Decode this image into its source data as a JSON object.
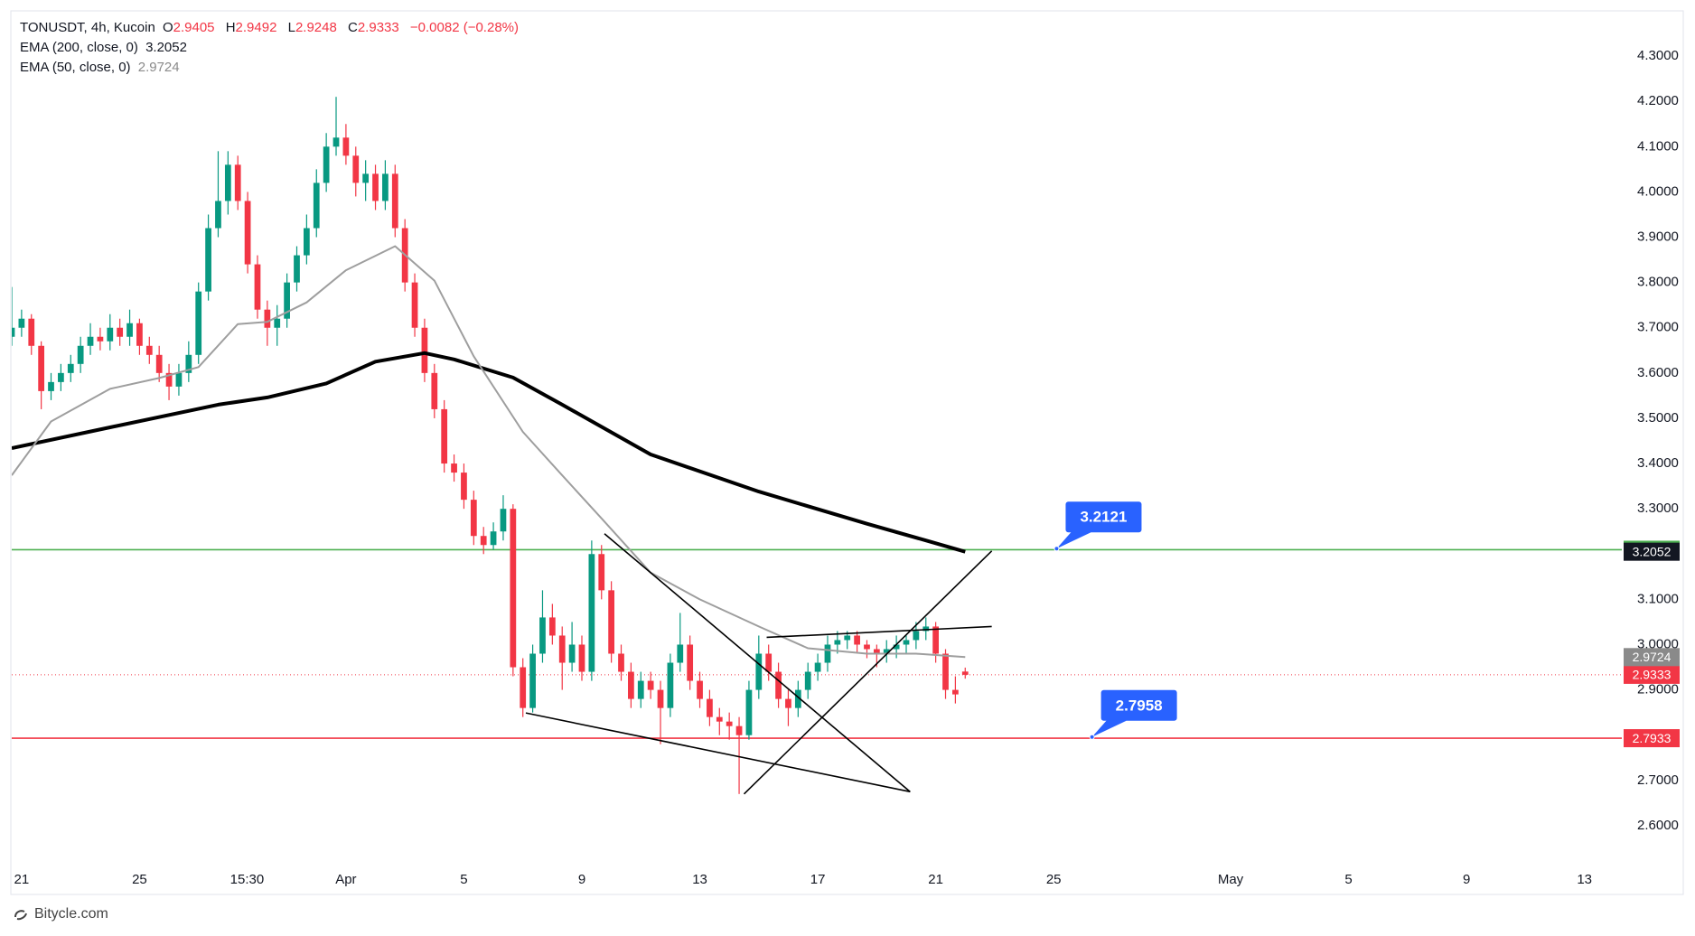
{
  "chart_data": {
    "type": "candlestick",
    "symbol": "TONUSDT, 4h, Kucoin",
    "ohlc_letters": [
      "O",
      "H",
      "L",
      "C"
    ],
    "change": "−0.0082 (−0.28%)",
    "up_color": "#089981",
    "down_color": "#f23645",
    "grid": false,
    "xlim": [
      -1,
      162.8
    ],
    "ylim": [
      2.514,
      4.398
    ],
    "xticks": [
      {
        "value": 0,
        "label": "21"
      },
      {
        "value": 12,
        "label": "25"
      },
      {
        "value": 22.94,
        "label": "15:30"
      },
      {
        "value": 33,
        "label": "Apr"
      },
      {
        "value": 45,
        "label": "5"
      },
      {
        "value": 57,
        "label": "9"
      },
      {
        "value": 69,
        "label": "13"
      },
      {
        "value": 81,
        "label": "17"
      },
      {
        "value": 93,
        "label": "21"
      },
      {
        "value": 105,
        "label": "25"
      },
      {
        "value": 123,
        "label": "May"
      },
      {
        "value": 135,
        "label": "5"
      },
      {
        "value": 147,
        "label": "9"
      },
      {
        "value": 159,
        "label": "13"
      }
    ],
    "yticks": [
      {
        "value": 2.6,
        "label": "2.6000"
      },
      {
        "value": 2.7,
        "label": "2.7000"
      },
      {
        "value": 2.8,
        "label": "2.8000"
      },
      {
        "value": 2.9,
        "label": "2.9000"
      },
      {
        "value": 3.0,
        "label": "3.0000"
      },
      {
        "value": 3.1,
        "label": "3.1000"
      },
      {
        "value": 3.2,
        "label": "3.2000"
      },
      {
        "value": 3.3,
        "label": "3.3000"
      },
      {
        "value": 3.4,
        "label": "3.4000"
      },
      {
        "value": 3.5,
        "label": "3.5000"
      },
      {
        "value": 3.6,
        "label": "3.6000"
      },
      {
        "value": 3.7,
        "label": "3.7000"
      },
      {
        "value": 3.8,
        "label": "3.8000"
      },
      {
        "value": 3.9,
        "label": "3.9000"
      },
      {
        "value": 4.0,
        "label": "4.0000"
      },
      {
        "value": 4.1,
        "label": "4.1000"
      },
      {
        "value": 4.2,
        "label": "4.2000"
      },
      {
        "value": 4.3,
        "label": "4.3000"
      }
    ],
    "x": [
      -1,
      0,
      1,
      2,
      3,
      4,
      5,
      6,
      7,
      8,
      9,
      10,
      11,
      12,
      13,
      14,
      15,
      16,
      17,
      18,
      19,
      20,
      21,
      22,
      23,
      24,
      25,
      26,
      27,
      28,
      29,
      30,
      31,
      32,
      33,
      34,
      35,
      36,
      37,
      38,
      39,
      40,
      41,
      42,
      43,
      44,
      45,
      46,
      47,
      48,
      49,
      50,
      51,
      52,
      53,
      54,
      55,
      56,
      57,
      58,
      59,
      60,
      61,
      62,
      63,
      64,
      65,
      66,
      67,
      68,
      69,
      70,
      71,
      72,
      73,
      74,
      75,
      76,
      77,
      78,
      79,
      80,
      81,
      82,
      83,
      84,
      85,
      86,
      87,
      88,
      89,
      90,
      91,
      92,
      93,
      94,
      95,
      96
    ],
    "candles": [
      [
        3.68,
        3.79,
        3.66,
        3.7
      ],
      [
        3.7,
        3.74,
        3.68,
        3.72
      ],
      [
        3.72,
        3.73,
        3.64,
        3.66
      ],
      [
        3.66,
        3.67,
        3.52,
        3.56
      ],
      [
        3.56,
        3.6,
        3.54,
        3.58
      ],
      [
        3.58,
        3.62,
        3.56,
        3.6
      ],
      [
        3.6,
        3.64,
        3.58,
        3.62
      ],
      [
        3.62,
        3.68,
        3.6,
        3.66
      ],
      [
        3.66,
        3.71,
        3.64,
        3.68
      ],
      [
        3.68,
        3.7,
        3.65,
        3.67
      ],
      [
        3.67,
        3.73,
        3.65,
        3.7
      ],
      [
        3.7,
        3.72,
        3.66,
        3.68
      ],
      [
        3.68,
        3.74,
        3.66,
        3.71
      ],
      [
        3.71,
        3.72,
        3.64,
        3.66
      ],
      [
        3.66,
        3.68,
        3.62,
        3.64
      ],
      [
        3.64,
        3.66,
        3.58,
        3.6
      ],
      [
        3.6,
        3.62,
        3.54,
        3.57
      ],
      [
        3.57,
        3.62,
        3.55,
        3.6
      ],
      [
        3.6,
        3.67,
        3.58,
        3.64
      ],
      [
        3.64,
        3.8,
        3.62,
        3.78
      ],
      [
        3.78,
        3.95,
        3.76,
        3.92
      ],
      [
        3.92,
        4.09,
        3.9,
        3.98
      ],
      [
        3.98,
        4.09,
        3.95,
        4.06
      ],
      [
        4.06,
        4.08,
        3.96,
        3.98
      ],
      [
        3.98,
        4.0,
        3.82,
        3.84
      ],
      [
        3.84,
        3.86,
        3.72,
        3.74
      ],
      [
        3.74,
        3.76,
        3.66,
        3.7
      ],
      [
        3.7,
        3.75,
        3.66,
        3.72
      ],
      [
        3.72,
        3.82,
        3.7,
        3.8
      ],
      [
        3.8,
        3.88,
        3.78,
        3.86
      ],
      [
        3.86,
        3.95,
        3.84,
        3.92
      ],
      [
        3.92,
        4.05,
        3.9,
        4.02
      ],
      [
        4.02,
        4.13,
        4.0,
        4.1
      ],
      [
        4.1,
        4.21,
        4.08,
        4.12
      ],
      [
        4.12,
        4.15,
        4.06,
        4.08
      ],
      [
        4.08,
        4.1,
        3.99,
        4.02
      ],
      [
        4.02,
        4.07,
        3.98,
        4.04
      ],
      [
        4.04,
        4.06,
        3.96,
        3.98
      ],
      [
        3.98,
        4.07,
        3.96,
        4.04
      ],
      [
        4.04,
        4.06,
        3.9,
        3.92
      ],
      [
        3.92,
        3.94,
        3.78,
        3.8
      ],
      [
        3.8,
        3.82,
        3.68,
        3.7
      ],
      [
        3.7,
        3.72,
        3.58,
        3.6
      ],
      [
        3.6,
        3.62,
        3.5,
        3.52
      ],
      [
        3.52,
        3.54,
        3.38,
        3.4
      ],
      [
        3.4,
        3.42,
        3.36,
        3.38
      ],
      [
        3.38,
        3.4,
        3.3,
        3.32
      ],
      [
        3.32,
        3.34,
        3.22,
        3.24
      ],
      [
        3.24,
        3.26,
        3.2,
        3.22
      ],
      [
        3.22,
        3.27,
        3.21,
        3.25
      ],
      [
        3.25,
        3.33,
        3.23,
        3.3
      ],
      [
        3.3,
        3.31,
        2.93,
        2.95
      ],
      [
        2.95,
        2.97,
        2.84,
        2.86
      ],
      [
        2.86,
        3.0,
        2.85,
        2.98
      ],
      [
        2.98,
        3.12,
        2.96,
        3.06
      ],
      [
        3.06,
        3.09,
        3.0,
        3.02
      ],
      [
        3.02,
        3.04,
        2.9,
        2.96
      ],
      [
        2.96,
        3.05,
        2.94,
        3.0
      ],
      [
        3.0,
        3.02,
        2.92,
        2.94
      ],
      [
        2.94,
        3.23,
        2.92,
        3.2
      ],
      [
        3.2,
        3.22,
        3.1,
        3.12
      ],
      [
        3.12,
        3.14,
        2.96,
        2.98
      ],
      [
        2.98,
        3.0,
        2.92,
        2.94
      ],
      [
        2.94,
        2.96,
        2.86,
        2.88
      ],
      [
        2.88,
        2.94,
        2.86,
        2.92
      ],
      [
        2.92,
        2.94,
        2.88,
        2.9
      ],
      [
        2.9,
        2.92,
        2.78,
        2.86
      ],
      [
        2.86,
        2.98,
        2.84,
        2.96
      ],
      [
        2.96,
        3.07,
        2.94,
        3.0
      ],
      [
        3.0,
        3.02,
        2.9,
        2.92
      ],
      [
        2.92,
        2.94,
        2.86,
        2.88
      ],
      [
        2.88,
        2.9,
        2.82,
        2.84
      ],
      [
        2.84,
        2.86,
        2.8,
        2.83
      ],
      [
        2.83,
        2.85,
        2.79,
        2.82
      ],
      [
        2.82,
        2.84,
        2.67,
        2.8
      ],
      [
        2.8,
        2.92,
        2.79,
        2.9
      ],
      [
        2.9,
        3.02,
        2.88,
        2.98
      ],
      [
        2.98,
        3.0,
        2.92,
        2.94
      ],
      [
        2.94,
        2.96,
        2.86,
        2.88
      ],
      [
        2.88,
        2.9,
        2.82,
        2.86
      ],
      [
        2.86,
        2.92,
        2.84,
        2.9
      ],
      [
        2.9,
        2.96,
        2.88,
        2.94
      ],
      [
        2.94,
        2.98,
        2.92,
        2.96
      ],
      [
        2.96,
        3.02,
        2.94,
        3.0
      ],
      [
        3.0,
        3.03,
        2.98,
        3.01
      ],
      [
        3.01,
        3.03,
        2.99,
        3.02
      ],
      [
        3.02,
        3.03,
        2.98,
        3.0
      ],
      [
        3.0,
        3.01,
        2.97,
        2.99
      ],
      [
        2.99,
        3.0,
        2.95,
        2.98
      ],
      [
        2.98,
        3.01,
        2.96,
        2.99
      ],
      [
        2.99,
        3.02,
        2.97,
        3.0
      ],
      [
        3.0,
        3.02,
        2.98,
        3.01
      ],
      [
        3.01,
        3.05,
        2.99,
        3.03
      ],
      [
        3.03,
        3.06,
        3.01,
        3.04
      ],
      [
        3.04,
        3.05,
        2.96,
        2.98
      ],
      [
        2.98,
        2.99,
        2.88,
        2.9
      ],
      [
        2.9,
        2.93,
        2.87,
        2.89
      ],
      [
        2.9405,
        2.9492,
        2.9248,
        2.9333
      ]
    ],
    "lines": [
      {
        "name": "EMA (200, close, 0)",
        "value": 3.2052,
        "color": "#000000",
        "label_color": "#131722",
        "width": 4,
        "x": [
          -1,
          9,
          20,
          25,
          31,
          36,
          41,
          44,
          50,
          55,
          64,
          75,
          86,
          92,
          96
        ],
        "values": [
          3.434,
          3.48,
          3.53,
          3.546,
          3.577,
          3.625,
          3.644,
          3.63,
          3.59,
          3.53,
          3.42,
          3.338,
          3.267,
          3.23,
          3.2052
        ]
      },
      {
        "name": "EMA (50, close, 0)",
        "value": 2.9724,
        "color": "#9e9e9e",
        "label_color": "#8a8a8a",
        "width": 2,
        "x": [
          -1,
          3,
          9,
          14,
          18,
          22,
          25,
          29,
          33,
          38,
          42,
          46,
          51,
          55,
          59,
          64,
          69,
          75,
          80,
          86,
          91,
          96
        ],
        "values": [
          3.374,
          3.493,
          3.565,
          3.589,
          3.613,
          3.708,
          3.713,
          3.756,
          3.827,
          3.88,
          3.804,
          3.637,
          3.47,
          3.374,
          3.279,
          3.159,
          3.1,
          3.04,
          2.992,
          2.98,
          2.98,
          2.9724
        ]
      }
    ],
    "levels": [
      {
        "value": 3.2096,
        "color": "#4caf50",
        "style": "solid"
      },
      {
        "value": 2.7933,
        "color": "#f23645",
        "style": "solid"
      },
      {
        "value": 2.9333,
        "color": "#f23645",
        "style": "dotted"
      }
    ],
    "callouts": [
      {
        "value": 3.2121,
        "x": 105.3,
        "color": "#2962ff"
      },
      {
        "value": 2.7958,
        "x": 108.9,
        "color": "#2962ff"
      }
    ],
    "trendlines": [
      {
        "x": [
          59.3,
          90.4
        ],
        "y": [
          3.245,
          2.675
        ]
      },
      {
        "x": [
          51.3,
          90.4
        ],
        "y": [
          2.849,
          2.675
        ]
      },
      {
        "x": [
          73.5,
          98.7
        ],
        "y": [
          2.67,
          3.207
        ]
      },
      {
        "x": [
          75.8,
          98.7
        ],
        "y": [
          3.016,
          3.04
        ]
      }
    ]
  },
  "watermark": "Bitycle.com"
}
